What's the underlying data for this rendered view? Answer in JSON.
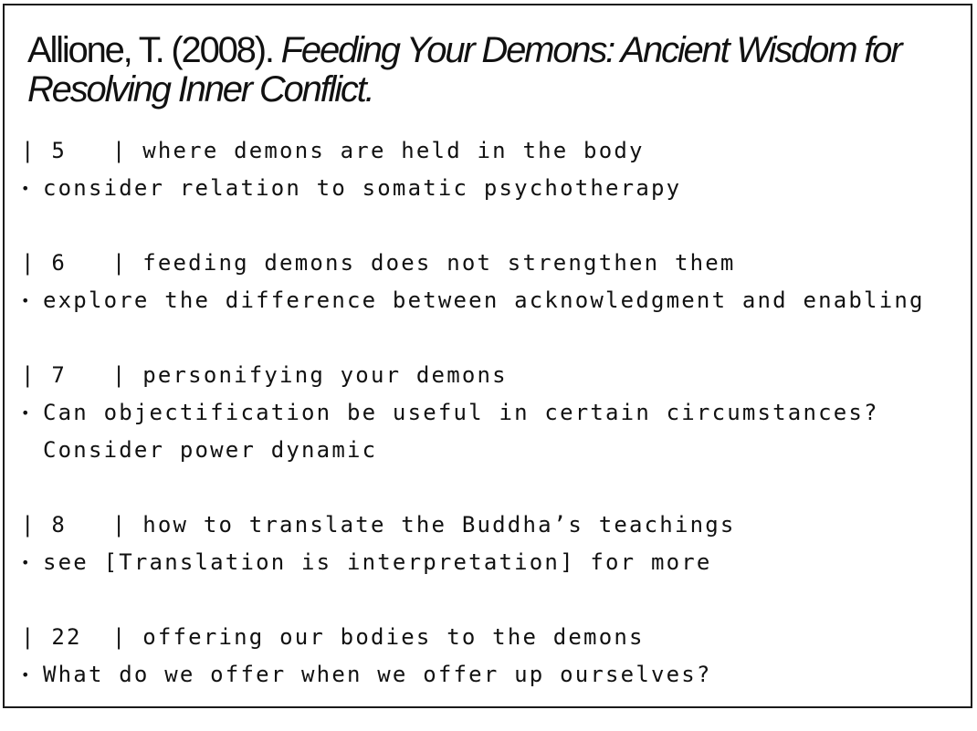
{
  "citation": {
    "author_year": "Allione, T. (2008). ",
    "title": "Feeding Your Demons: Ancient Wisdom for Resolving Inner Conflict."
  },
  "entries": [
    {
      "page": "5",
      "topic": "where demons are held in the body",
      "note": "consider relation to somatic psychotherapy"
    },
    {
      "page": "6",
      "topic": "feeding demons does not strengthen them",
      "note": "explore the difference between acknowledgment and enabling"
    },
    {
      "page": "7",
      "topic": "personifying your demons",
      "note": "Can objectification be useful in certain circumstances? Consider power dynamic"
    },
    {
      "page": "8",
      "topic": "how to translate the Buddha’s teachings",
      "note": "see [Translation is interpretation] for more"
    },
    {
      "page": "22",
      "topic": "offering our bodies to the demons",
      "note": "What do we offer when we offer up ourselves?"
    }
  ],
  "bullet_glyph": "•"
}
